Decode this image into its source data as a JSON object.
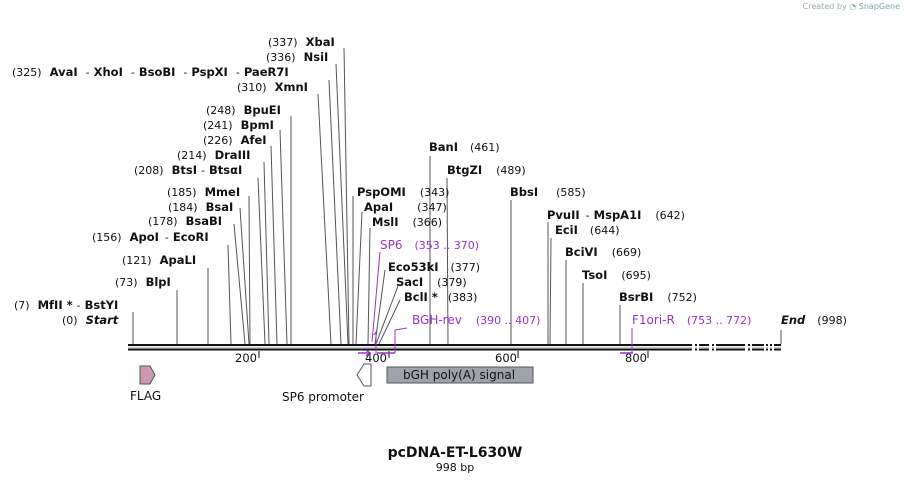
{
  "credit": {
    "prefix": "Created by",
    "brand": "SnapGene"
  },
  "title": "pcDNA-ET-L630W",
  "length_label": "998 bp",
  "axis_ticks": [
    "200",
    "400",
    "600",
    "800"
  ],
  "start_label": {
    "pos": "(0)",
    "name": "Start"
  },
  "end_label": {
    "name": "End",
    "pos": "(998)"
  },
  "enzymes_left": [
    {
      "pos": "(7)",
      "names": [
        "MfII *",
        "BstYI"
      ]
    },
    {
      "pos": "(73)",
      "names": [
        "BlpI"
      ]
    },
    {
      "pos": "(121)",
      "names": [
        "ApaLI"
      ]
    },
    {
      "pos": "(156)",
      "names": [
        "ApoI",
        "EcoRI"
      ]
    },
    {
      "pos": "(178)",
      "names": [
        "BsaBI"
      ]
    },
    {
      "pos": "(184)",
      "names": [
        "BsaI"
      ]
    },
    {
      "pos": "(185)",
      "names": [
        "MmeI"
      ]
    },
    {
      "pos": "(208)",
      "names": [
        "BtsI",
        "BtsαI"
      ]
    },
    {
      "pos": "(214)",
      "names": [
        "DraIII"
      ]
    },
    {
      "pos": "(226)",
      "names": [
        "AfeI"
      ]
    },
    {
      "pos": "(241)",
      "names": [
        "BpmI"
      ]
    },
    {
      "pos": "(248)",
      "names": [
        "BpuEI"
      ]
    },
    {
      "pos": "(310)",
      "names": [
        "XmnI"
      ]
    },
    {
      "pos": "(325)",
      "names": [
        "AvaI",
        "XhoI",
        "BsoBI",
        "PspXI",
        "PaeR7I"
      ]
    },
    {
      "pos": "(336)",
      "names": [
        "NsiI"
      ]
    },
    {
      "pos": "(337)",
      "names": [
        "XbaI"
      ]
    }
  ],
  "enzymes_right": [
    {
      "name": "PspOMI",
      "pos": "(343)"
    },
    {
      "name": "ApaI",
      "pos": "(347)"
    },
    {
      "name": "MslI",
      "pos": "(366)"
    },
    {
      "name": "Eco53kI",
      "pos": "(377)"
    },
    {
      "name": "SacI",
      "pos": "(379)"
    },
    {
      "name": "BclI *",
      "pos": "(383)"
    },
    {
      "name": "BanI",
      "pos": "(461)"
    },
    {
      "name": "BtgZI",
      "pos": "(489)"
    },
    {
      "name": "BbsI",
      "pos": "(585)"
    },
    {
      "name": "PvuII",
      "extra": "MspA1I",
      "pos": "(642)"
    },
    {
      "name": "EciI",
      "pos": "(644)"
    },
    {
      "name": "BciVI",
      "pos": "(669)"
    },
    {
      "name": "TsoI",
      "pos": "(695)"
    },
    {
      "name": "BsrBI",
      "pos": "(752)"
    }
  ],
  "primers": [
    {
      "name": "SP6",
      "range": "(353 .. 370)"
    },
    {
      "name": "BGH-rev",
      "range": "(390 .. 407)"
    },
    {
      "name": "F1ori-R",
      "range": "(753 .. 772)"
    }
  ],
  "features": [
    {
      "name": "FLAG",
      "color": "#cc99b1"
    },
    {
      "name": "SP6 promoter",
      "color": "#ffffff"
    },
    {
      "name": "bGH poly(A) signal",
      "color": "#9ea3a9"
    }
  ],
  "colors": {
    "primer": "#9933cc",
    "backbone": "#111111"
  }
}
